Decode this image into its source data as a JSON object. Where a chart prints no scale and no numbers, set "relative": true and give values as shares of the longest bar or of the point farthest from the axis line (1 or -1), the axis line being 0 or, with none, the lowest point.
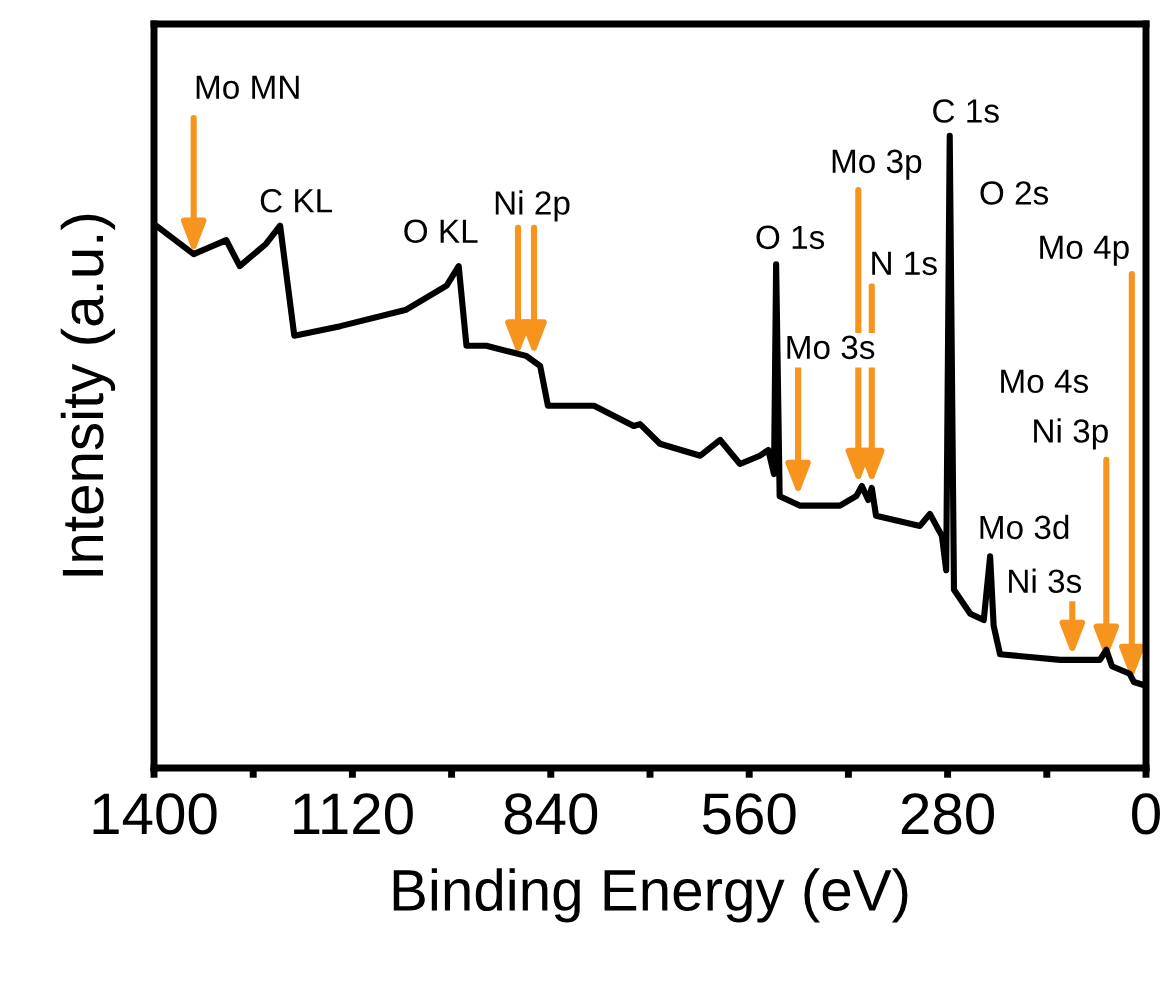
{
  "chart_data": {
    "type": "line",
    "relative": true,
    "xlabel": "Binding Energy (eV)",
    "ylabel": "Intensity (a.u.)",
    "xlim": [
      1400,
      0
    ],
    "xticks": [
      1400,
      {
        "value": 1260,
        "label": null
      },
      1120,
      {
        "value": 980,
        "label": null
      },
      840,
      {
        "value": 700,
        "label": null
      },
      560,
      {
        "value": 420,
        "label": null
      },
      280,
      {
        "value": 140,
        "label": null
      },
      0
    ],
    "tick_labels": "x",
    "grid": false,
    "legend": false,
    "marker": "none",
    "line_style": "solid",
    "series": [
      {
        "color": "#000000",
        "x": [
          1397,
          1344,
          1298,
          1279,
          1242,
          1222,
          1202,
          1137,
          1044,
          987,
          970,
          959,
          931,
          875,
          855,
          844,
          779,
          723,
          714,
          686,
          629,
          601,
          573,
          545,
          533,
          525,
          522,
          517,
          488,
          432,
          409,
          401,
          392,
          387,
          381,
          319,
          305,
          288,
          282,
          277,
          271,
          248,
          229,
          220,
          215,
          206,
          121,
          65,
          56,
          48,
          23,
          17,
          0
        ],
        "values": [
          0.858,
          0.813,
          0.835,
          0.794,
          0.829,
          0.858,
          0.684,
          0.699,
          0.725,
          0.763,
          0.794,
          0.668,
          0.668,
          0.652,
          0.636,
          0.573,
          0.573,
          0.541,
          0.544,
          0.513,
          0.494,
          0.519,
          0.481,
          0.494,
          0.503,
          0.465,
          0.797,
          0.43,
          0.415,
          0.415,
          0.43,
          0.446,
          0.424,
          0.443,
          0.399,
          0.383,
          0.402,
          0.367,
          0.313,
          1.0,
          0.282,
          0.244,
          0.234,
          0.335,
          0.225,
          0.18,
          0.171,
          0.171,
          0.187,
          0.161,
          0.149,
          0.136,
          0.13
        ]
      }
    ],
    "annotations": [
      {
        "text": "Mo MN",
        "x": 1344,
        "y": 0.813
      },
      {
        "text": "C KL",
        "x": 1222,
        "y": 0.858
      },
      {
        "text": "O KL",
        "x": 970,
        "y": 0.794
      },
      {
        "text": "Ni 2p",
        "x": 875,
        "y": 0.652
      },
      {
        "text": "O 1s",
        "x": 522,
        "y": 0.797
      },
      {
        "text": "Mo 3s",
        "x": 491,
        "y": 0.43
      },
      {
        "text": "Mo 3p",
        "x": 406,
        "y": 0.449
      },
      {
        "text": "N 1s",
        "x": 387,
        "y": 0.449
      },
      {
        "text": "C 1s",
        "x": 277,
        "y": 1.0
      },
      "O 2s",
      {
        "text": "Mo 3d",
        "x": 220,
        "y": 0.335
      },
      {
        "text": "Ni 3s",
        "x": 104,
        "y": 0.177
      },
      {
        "text": "Ni 3p",
        "x": 56,
        "y": 0.171
      },
      "Mo 4s",
      {
        "text": "Mo 4p",
        "x": 20,
        "y": 0.139
      }
    ]
  }
}
